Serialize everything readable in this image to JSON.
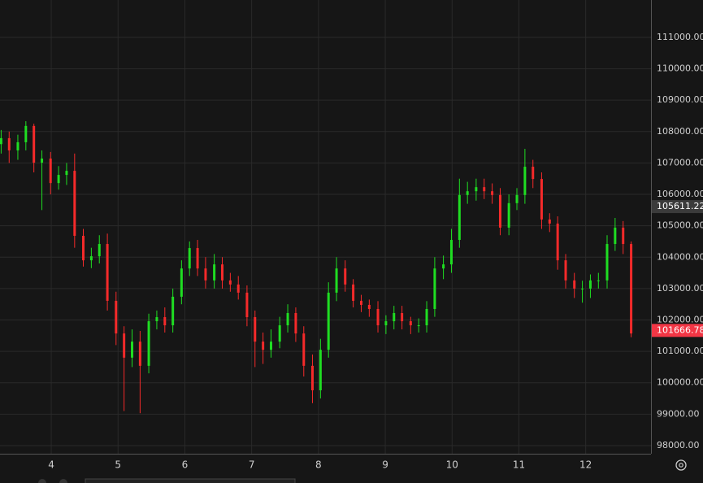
{
  "chart_data": {
    "type": "candlestick",
    "x": [
      3.25,
      3.37,
      3.5,
      3.62,
      3.74,
      3.86,
      3.99,
      4.11,
      4.23,
      4.35,
      4.48,
      4.6,
      4.72,
      4.84,
      4.97,
      5.09,
      5.21,
      5.33,
      5.46,
      5.58,
      5.7,
      5.82,
      5.95,
      6.07,
      6.19,
      6.31,
      6.44,
      6.56,
      6.68,
      6.8,
      6.93,
      7.05,
      7.17,
      7.29,
      7.42,
      7.54,
      7.66,
      7.78,
      7.91,
      8.03,
      8.15,
      8.27,
      8.4,
      8.52,
      8.64,
      8.76,
      8.89,
      9.01,
      9.13,
      9.25,
      9.38,
      9.5,
      9.62,
      9.74,
      9.87,
      9.99,
      10.11,
      10.23,
      10.36,
      10.48,
      10.6,
      10.72,
      10.85,
      10.97,
      11.09,
      11.21,
      11.34,
      11.46,
      11.58,
      11.7,
      11.83,
      11.95,
      12.07,
      12.19,
      12.32,
      12.44,
      12.56,
      12.68
    ],
    "open": [
      107600,
      107790,
      107400,
      107660,
      108180,
      107010,
      107140,
      106360,
      106620,
      106750,
      104680,
      103900,
      104030,
      104420,
      102610,
      101570,
      100800,
      101310,
      100540,
      101960,
      102090,
      101830,
      102740,
      103640,
      104290,
      103640,
      103260,
      103770,
      103260,
      103130,
      102870,
      102090,
      101310,
      101050,
      101310,
      101830,
      102220,
      101570,
      100540,
      99760,
      101050,
      102870,
      103640,
      103130,
      102610,
      102480,
      102350,
      101830,
      101960,
      102220,
      101960,
      101830,
      101830,
      102350,
      103640,
      103770,
      104550,
      105980,
      106100,
      106230,
      106100,
      105980,
      104940,
      105720,
      105980,
      106880,
      106490,
      105200,
      105070,
      103900,
      103260,
      103000,
      103000,
      103260,
      103260,
      104420,
      104940,
      104420
    ],
    "high": [
      108050,
      108000,
      107900,
      108330,
      108250,
      107400,
      107350,
      106900,
      107000,
      107300,
      104900,
      104300,
      104700,
      104750,
      102900,
      101800,
      101700,
      101650,
      102200,
      102300,
      102400,
      103000,
      103900,
      104500,
      104550,
      104000,
      104100,
      104000,
      103500,
      103400,
      103100,
      102300,
      101600,
      101700,
      102100,
      102500,
      102400,
      101800,
      100900,
      101400,
      103200,
      104000,
      103900,
      103300,
      102800,
      102650,
      102600,
      102150,
      102450,
      102450,
      102100,
      102050,
      102600,
      104000,
      104050,
      104900,
      106500,
      106400,
      106500,
      106500,
      106350,
      106200,
      106000,
      106200,
      107450,
      107100,
      106700,
      105400,
      105300,
      104100,
      103500,
      103250,
      103450,
      103500,
      104700,
      105250,
      105150,
      104500
    ],
    "low": [
      107300,
      107000,
      107100,
      107400,
      106700,
      105500,
      106000,
      106150,
      106300,
      104300,
      103700,
      103650,
      103800,
      102300,
      101200,
      99100,
      100500,
      99030,
      100300,
      101700,
      101600,
      101600,
      102500,
      103400,
      103400,
      103000,
      103000,
      103000,
      102900,
      102650,
      101800,
      100500,
      100600,
      100800,
      101100,
      101600,
      101300,
      100200,
      99350,
      99500,
      100800,
      102600,
      102900,
      102400,
      102250,
      102100,
      101600,
      101550,
      101700,
      101700,
      101550,
      101600,
      101600,
      102100,
      103300,
      103500,
      104300,
      105700,
      105800,
      105850,
      105700,
      104700,
      104700,
      105500,
      105700,
      106200,
      104900,
      104800,
      103600,
      103000,
      102700,
      102550,
      102700,
      103000,
      103000,
      104200,
      104100,
      101450
    ],
    "close": [
      107790,
      107400,
      107660,
      108180,
      107010,
      107140,
      106360,
      106620,
      106750,
      104680,
      103900,
      104030,
      104420,
      102610,
      101570,
      100800,
      101310,
      100540,
      101960,
      102090,
      101830,
      102740,
      103640,
      104290,
      103640,
      103260,
      103770,
      103260,
      103130,
      102870,
      102090,
      101310,
      101050,
      101310,
      101830,
      102220,
      101570,
      100540,
      99760,
      101050,
      102870,
      103640,
      103130,
      102610,
      102480,
      102350,
      101830,
      101960,
      102220,
      101960,
      101830,
      101830,
      102350,
      103640,
      103770,
      104550,
      105980,
      106100,
      106230,
      106100,
      105980,
      104940,
      105720,
      105980,
      106880,
      106490,
      105200,
      105070,
      103900,
      103260,
      103000,
      103000,
      103260,
      103260,
      104420,
      104940,
      104420,
      101570
    ],
    "up_color": "#1fdd22",
    "down_color": "#f52a2a",
    "xlim": [
      3.233,
      12.977
    ],
    "xticks": [
      4,
      5,
      6,
      7,
      8,
      9,
      10,
      11,
      12
    ],
    "ylim": [
      97740,
      112190
    ],
    "yticks": [
      {
        "value": 98000,
        "label": "98000.00"
      },
      {
        "value": 99000,
        "label": "99000.00"
      },
      {
        "value": 100000,
        "label": "100000.00"
      },
      {
        "value": 101000,
        "label": "101000.00"
      },
      {
        "value": 102000,
        "label": "102000.00"
      },
      {
        "value": 103000,
        "label": "103000.00"
      },
      {
        "value": 104000,
        "label": "104000.00"
      },
      {
        "value": 105000,
        "label": "105000.00"
      },
      {
        "value": 106000,
        "label": "106000.00"
      },
      {
        "value": 107000,
        "label": "107000.00"
      },
      {
        "value": 108000,
        "label": "108000.00"
      },
      {
        "value": 109000,
        "label": "109000.00"
      },
      {
        "value": 110000,
        "label": "110000.00"
      },
      {
        "value": 111000,
        "label": "111000.00"
      }
    ],
    "price_markers": [
      {
        "value": 105611.22,
        "color": "#3b3b3b"
      },
      {
        "value": 101666.78,
        "color": "#f23645"
      }
    ],
    "grid": true
  }
}
